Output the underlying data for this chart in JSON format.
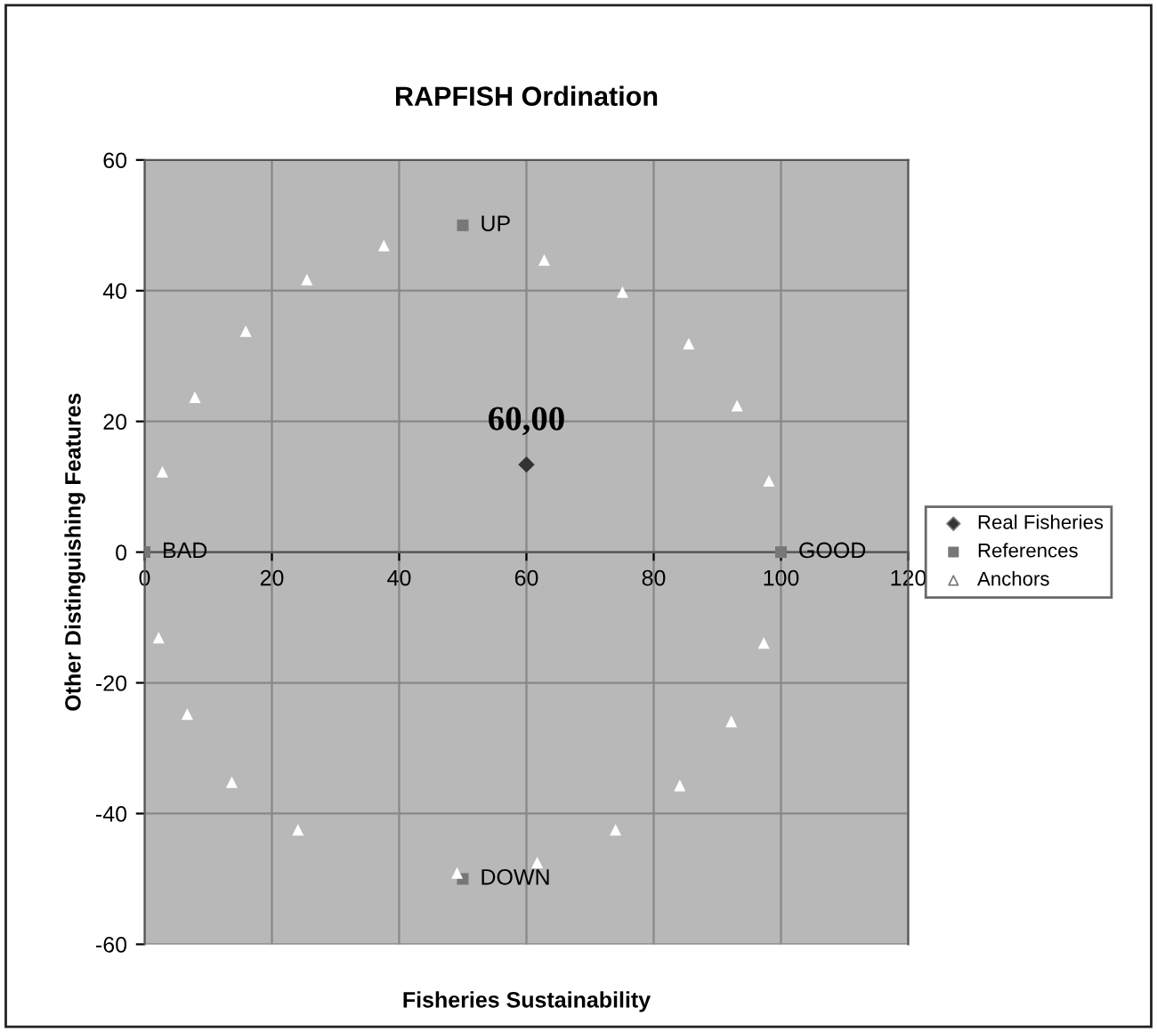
{
  "chart_data": {
    "type": "scatter",
    "title": "RAPFISH Ordination",
    "xlabel": "Fisheries Sustainability",
    "ylabel": "Other Distinguishing Features",
    "xlim": [
      0,
      120
    ],
    "xticks": [
      0,
      20,
      40,
      60,
      80,
      100,
      120
    ],
    "ylim": [
      -60,
      60
    ],
    "yticks": [
      -60,
      -40,
      -20,
      0,
      20,
      40,
      60
    ],
    "grid": true,
    "legend": "right",
    "series": [
      {
        "name": "Real Fisheries",
        "color": "#333333",
        "marker": "diamond",
        "x": [
          60
        ],
        "values": [
          13.4
        ]
      },
      {
        "name": "References",
        "color": "#777777",
        "marker": "square",
        "x": [
          0,
          100,
          50,
          50
        ],
        "values": [
          0,
          0,
          50,
          -50
        ]
      },
      {
        "name": "Anchors",
        "color": "#ffffff",
        "marker": "triangle",
        "x": [
          2.8,
          7.9,
          15.9,
          25.5,
          37.6,
          62.8,
          75.1,
          85.5,
          93.1,
          98.1,
          2.2,
          6.7,
          13.7,
          24.1,
          49.1,
          61.7,
          74.0,
          84.1,
          92.2,
          97.3
        ],
        "values": [
          12.3,
          23.7,
          33.8,
          41.7,
          46.9,
          44.7,
          39.8,
          31.9,
          22.4,
          10.9,
          -13.1,
          -24.8,
          -35.2,
          -42.5,
          -49.1,
          -47.5,
          -42.5,
          -35.7,
          -25.9,
          -13.9
        ]
      }
    ],
    "annotations": [
      {
        "text": "60,00",
        "x": 60,
        "y": 13.4
      },
      {
        "text": "BAD",
        "x": 0,
        "y": 0
      },
      {
        "text": "GOOD",
        "x": 100,
        "y": 0
      },
      {
        "text": "UP",
        "x": 50,
        "y": 50
      },
      {
        "text": "DOWN",
        "x": 50,
        "y": -50
      }
    ]
  }
}
